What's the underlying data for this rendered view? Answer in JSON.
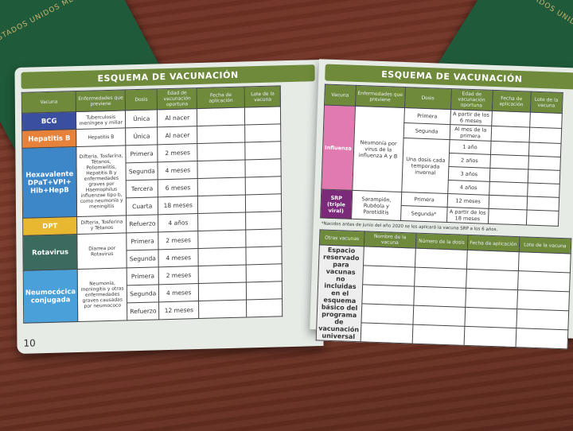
{
  "colors": {
    "header_green": "#6e8a3a",
    "bcg": "#3b4fa0",
    "hepatitis_b": "#e6823a",
    "hexavalente": "#3d86c8",
    "dpt": "#e8b830",
    "rotavirus": "#3a6b5e",
    "neumococica": "#4aa0d8",
    "influenza": "#e07ab0",
    "srp": "#7a2a78"
  },
  "passport_left": {
    "text": "ESTADOS UNIDOS MEXICANOS"
  },
  "passport_right": {
    "text": "ESTADOS UNIDOS MEXICANOS"
  },
  "left_page": {
    "title": "ESQUEMA DE VACUNACIÓN",
    "page_number": "10",
    "headers": [
      "Vacuna",
      "Enfermedades que previene",
      "Dosis",
      "Edad de vacunación oportuna",
      "Fecha de aplicación",
      "Lote de la vacuna"
    ],
    "vaccines": [
      {
        "name": "BCG",
        "color": "#3b4fa0",
        "diseases": "Tuberculosis meníngea y miliar",
        "doses": [
          [
            "Única",
            "Al nacer"
          ]
        ]
      },
      {
        "name": "Hepatitis B",
        "color": "#e6823a",
        "diseases": "Hepatitis B",
        "doses": [
          [
            "Única",
            "Al nacer"
          ]
        ]
      },
      {
        "name": "Hexavalente DPaT+VPI+ Hib+HepB",
        "color": "#3d86c8",
        "diseases": "Difteria, Tosferina, Tétanos, Poliomielitis, Hepatitis B y enfermedades graves por Haemophilus influenzae tipo b, como neumonía y meningitis",
        "doses": [
          [
            "Primera",
            "2 meses"
          ],
          [
            "Segunda",
            "4 meses"
          ],
          [
            "Tercera",
            "6 meses"
          ],
          [
            "Cuarta",
            "18 meses"
          ]
        ]
      },
      {
        "name": "DPT",
        "color": "#e8b830",
        "diseases": "Difteria, Tosferina y Tétanos",
        "doses": [
          [
            "Refuerzo",
            "4 años"
          ]
        ]
      },
      {
        "name": "Rotavirus",
        "color": "#3a6b5e",
        "diseases": "Diarrea por Rotavirus",
        "doses": [
          [
            "Primera",
            "2 meses"
          ],
          [
            "Segunda",
            "4 meses"
          ]
        ]
      },
      {
        "name": "Neumocócica conjugada",
        "color": "#4aa0d8",
        "diseases": "Neumonía, meningitis y otras enfermedades graves causadas por neumococo",
        "doses": [
          [
            "Primera",
            "2 meses"
          ],
          [
            "Segunda",
            "4 meses"
          ],
          [
            "Refuerzo",
            "12 meses"
          ]
        ]
      }
    ]
  },
  "right_page": {
    "title": "ESQUEMA DE VACUNACIÓN",
    "headers": [
      "Vacuna",
      "Enfermedades que previene",
      "Dosis",
      "Edad de vacunación oportuna",
      "Fecha de aplicación",
      "Lote de la vacuna"
    ],
    "vaccines": [
      {
        "name": "Influenza",
        "color": "#e07ab0",
        "diseases": "Neumonía por virus de la influenza A y B",
        "doses": [
          [
            "Primera",
            "A partir de los 6 meses"
          ],
          [
            "Segunda",
            "Al mes de la primera"
          ],
          [
            "Una dosis cada temporada invernal",
            "1 año"
          ],
          [
            "",
            "2 años"
          ],
          [
            "",
            "3 años"
          ],
          [
            "",
            "4 años"
          ]
        ]
      },
      {
        "name": "SRP (triple viral)",
        "color": "#7a2a78",
        "diseases": "Sarampión, Rubéola y Parotiditis",
        "doses": [
          [
            "Primera",
            "12 meses"
          ],
          [
            "Segunda*",
            "A partir de los 18 meses"
          ]
        ]
      }
    ],
    "footnote": "*Nacidos antes de junio del año 2020 se les aplicará la vacuna SRP a los 6 años.",
    "other_headers": [
      "Otras vacunas",
      "Nombre de la vacuna",
      "Número de la dosis",
      "Fecha de aplicación",
      "Lote de la vacuna"
    ],
    "other_label": "Espacio reservado para vacunas no incluidas en el esquema básico del programa de vacunación universal"
  }
}
